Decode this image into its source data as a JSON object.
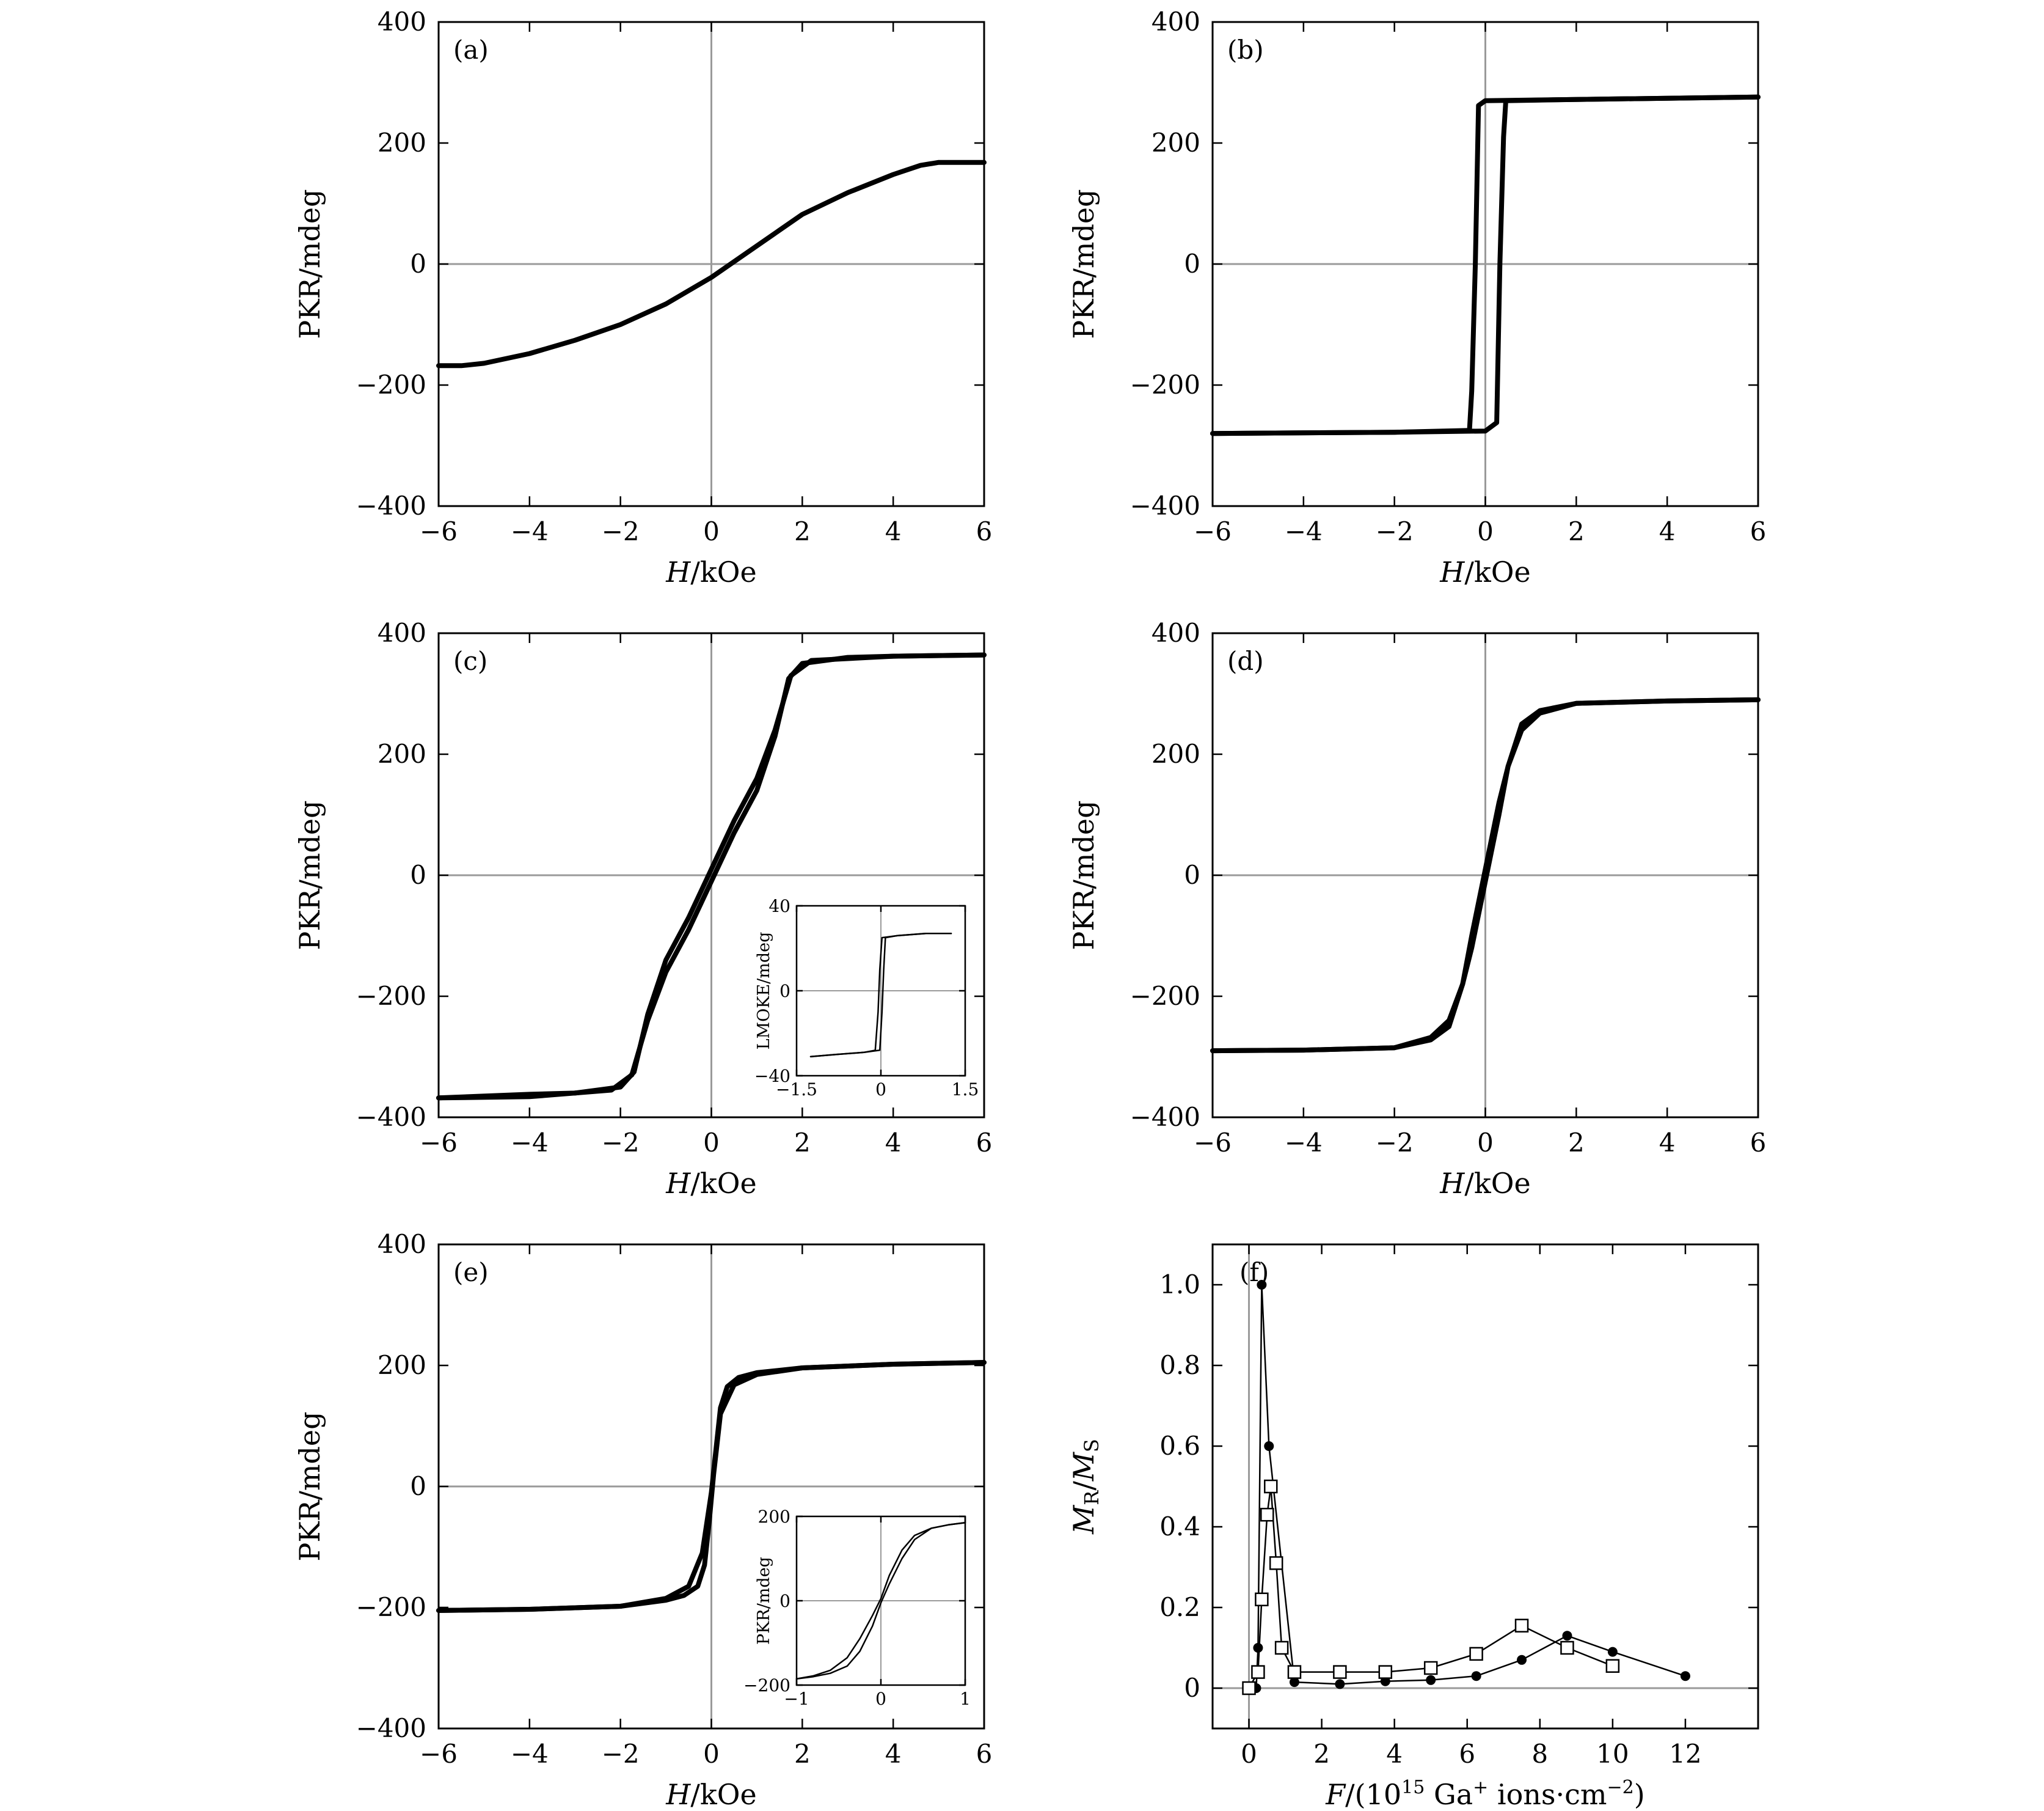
{
  "chart_data": [
    {
      "panel": "a",
      "label": "(a)",
      "type": "line",
      "xlabel_italic": "H",
      "xlabel_rest": "/kOe",
      "ylabel": "PKR/mdeg",
      "xlim": [
        -6,
        6
      ],
      "ylim": [
        -400,
        400
      ],
      "xticks": [
        "−6",
        "−4",
        "−2",
        "0",
        "2",
        "4",
        "6"
      ],
      "yticks": [
        "−400",
        "−200",
        "0",
        "200",
        "400"
      ],
      "series": [
        {
          "x": [
            -6,
            -5.5,
            -5,
            -4,
            -3,
            -2,
            -1,
            0,
            1,
            2,
            3,
            4,
            4.6,
            5,
            5.5,
            6
          ],
          "y": [
            -168,
            -168,
            -164,
            -148,
            -126,
            -100,
            -66,
            -22,
            30,
            82,
            118,
            148,
            163,
            168,
            168,
            168
          ]
        }
      ]
    },
    {
      "panel": "b",
      "label": "(b)",
      "type": "line",
      "xlabel_italic": "H",
      "xlabel_rest": "/kOe",
      "ylabel": "PKR/mdeg",
      "xlim": [
        -6,
        6
      ],
      "ylim": [
        -400,
        400
      ],
      "xticks": [
        "−6",
        "−4",
        "−2",
        "0",
        "2",
        "4",
        "6"
      ],
      "yticks": [
        "−400",
        "−200",
        "0",
        "200",
        "400"
      ],
      "series": [
        {
          "x": [
            -6,
            -2,
            -0.35,
            -0.3,
            -0.22,
            -0.15,
            0,
            2,
            6
          ],
          "y": [
            -280,
            -278,
            -275,
            -210,
            0,
            262,
            270,
            272,
            276
          ]
        },
        {
          "x": [
            6,
            2,
            0.45,
            0.4,
            0.32,
            0.25,
            0,
            -2,
            -6
          ],
          "y": [
            276,
            272,
            270,
            210,
            0,
            -262,
            -276,
            -278,
            -280
          ]
        }
      ]
    },
    {
      "panel": "c",
      "label": "(c)",
      "type": "line",
      "xlabel_italic": "H",
      "xlabel_rest": "/kOe",
      "ylabel": "PKR/mdeg",
      "xlim": [
        -6,
        6
      ],
      "ylim": [
        -400,
        400
      ],
      "xticks": [
        "−6",
        "−4",
        "−2",
        "0",
        "2",
        "4",
        "6"
      ],
      "yticks": [
        "−400",
        "−200",
        "0",
        "200",
        "400"
      ],
      "series": [
        {
          "x": [
            -6,
            -4,
            -2.2,
            -1.75,
            -1.4,
            -1,
            -0.5,
            0,
            0.5,
            1,
            1.4,
            1.7,
            2,
            3,
            4,
            6
          ],
          "y": [
            -368,
            -366,
            -355,
            -330,
            -240,
            -160,
            -90,
            -10,
            70,
            140,
            230,
            325,
            350,
            360,
            362,
            364
          ]
        },
        {
          "x": [
            6,
            4,
            2.2,
            1.75,
            1.4,
            1,
            0.5,
            0,
            -0.5,
            -1,
            -1.4,
            -1.7,
            -2,
            -3,
            -4,
            -6
          ],
          "y": [
            364,
            362,
            355,
            330,
            240,
            160,
            90,
            10,
            -70,
            -140,
            -230,
            -325,
            -350,
            -360,
            -362,
            -368
          ]
        }
      ]
    },
    {
      "panel": "c_inset",
      "type": "line",
      "ylabel": "LMOKE/mdeg",
      "xlim": [
        -1.5,
        1.5
      ],
      "ylim": [
        -40,
        40
      ],
      "xticks": [
        "−1.5",
        "0",
        "1.5"
      ],
      "yticks": [
        "−40",
        "0",
        "40"
      ],
      "series": [
        {
          "x": [
            -1.25,
            -0.8,
            -0.3,
            -0.1,
            -0.05,
            -0.02,
            0.02,
            0.3,
            0.8,
            1.25
          ],
          "y": [
            -31,
            -30,
            -29,
            -28,
            -10,
            10,
            25,
            26,
            27,
            27
          ]
        },
        {
          "x": [
            1.25,
            0.8,
            0.3,
            0.08,
            0.05,
            0.02,
            -0.02,
            -0.3,
            -0.8,
            -1.25
          ],
          "y": [
            27,
            27,
            26,
            25,
            10,
            -10,
            -28,
            -29,
            -30,
            -31
          ]
        }
      ]
    },
    {
      "panel": "d",
      "label": "(d)",
      "type": "line",
      "xlabel_italic": "H",
      "xlabel_rest": "/kOe",
      "ylabel": "PKR/mdeg",
      "xlim": [
        -6,
        6
      ],
      "ylim": [
        -400,
        400
      ],
      "xticks": [
        "−6",
        "−4",
        "−2",
        "0",
        "2",
        "4",
        "6"
      ],
      "yticks": [
        "−400",
        "−200",
        "0",
        "200",
        "400"
      ],
      "series": [
        {
          "x": [
            -6,
            -4,
            -2,
            -1.2,
            -0.8,
            -0.5,
            -0.3,
            0,
            0.3,
            0.5,
            0.8,
            1.2,
            2,
            4,
            6
          ],
          "y": [
            -290,
            -289,
            -285,
            -268,
            -240,
            -180,
            -120,
            -10,
            100,
            180,
            250,
            272,
            284,
            288,
            290
          ]
        },
        {
          "x": [
            6,
            4,
            2,
            1.2,
            0.8,
            0.5,
            0.3,
            0,
            -0.3,
            -0.5,
            -0.8,
            -1.2,
            -2,
            -4,
            -6
          ],
          "y": [
            290,
            288,
            284,
            268,
            240,
            180,
            120,
            10,
            -100,
            -180,
            -250,
            -272,
            -285,
            -289,
            -290
          ]
        }
      ]
    },
    {
      "panel": "e",
      "label": "(e)",
      "type": "line",
      "xlabel_italic": "H",
      "xlabel_rest": "/kOe",
      "ylabel": "PKR/mdeg",
      "xlim": [
        -6,
        6
      ],
      "ylim": [
        -400,
        400
      ],
      "xticks": [
        "−6",
        "−4",
        "−2",
        "0",
        "2",
        "4",
        "6"
      ],
      "yticks": [
        "−400",
        "−200",
        "0",
        "200",
        "400"
      ],
      "series": [
        {
          "x": [
            -6,
            -4,
            -2,
            -1,
            -0.5,
            -0.2,
            0,
            0.1,
            0.2,
            0.35,
            0.6,
            1,
            2,
            4,
            6
          ],
          "y": [
            -205,
            -203,
            -198,
            -185,
            -165,
            -110,
            -10,
            60,
            130,
            165,
            180,
            188,
            196,
            202,
            205
          ]
        },
        {
          "x": [
            6,
            4,
            2,
            1,
            0.5,
            0.2,
            0.05,
            -0.05,
            -0.15,
            -0.3,
            -0.6,
            -1,
            -2,
            -4,
            -6
          ],
          "y": [
            205,
            202,
            196,
            185,
            168,
            120,
            20,
            -60,
            -130,
            -165,
            -180,
            -188,
            -198,
            -203,
            -205
          ]
        }
      ]
    },
    {
      "panel": "e_inset",
      "type": "line",
      "ylabel": "PKR/mdeg",
      "xlim": [
        -1,
        1
      ],
      "ylim": [
        -200,
        200
      ],
      "xticks": [
        "−1",
        "0",
        "1"
      ],
      "yticks": [
        "−200",
        "0",
        "200"
      ],
      "series": [
        {
          "x": [
            -1,
            -0.8,
            -0.6,
            -0.4,
            -0.25,
            -0.1,
            0,
            0.1,
            0.25,
            0.4,
            0.6,
            0.8,
            1
          ],
          "y": [
            -185,
            -178,
            -165,
            -135,
            -90,
            -35,
            5,
            60,
            120,
            155,
            172,
            180,
            185
          ]
        },
        {
          "x": [
            1,
            0.8,
            0.6,
            0.4,
            0.25,
            0.1,
            0,
            -0.1,
            -0.25,
            -0.4,
            -0.6,
            -0.8,
            -1
          ],
          "y": [
            185,
            180,
            172,
            145,
            100,
            40,
            -5,
            -60,
            -120,
            -155,
            -172,
            -180,
            -185
          ]
        }
      ]
    },
    {
      "panel": "f",
      "label": "(f)",
      "type": "line",
      "xlabel_prefix_italic": "F",
      "xlabel_text": "/(10",
      "xlabel_sup1": "15",
      "xlabel_mid": " Ga",
      "xlabel_sup2": "+",
      "xlabel_mid2": " ions·cm",
      "xlabel_sup3": "−2",
      "xlabel_end": ")",
      "ylabel_m1": "M",
      "ylabel_s1": "R",
      "ylabel_slash": "/",
      "ylabel_m2": "M",
      "ylabel_s2": "S",
      "xlim": [
        -1,
        14
      ],
      "ylim": [
        -0.1,
        1.1
      ],
      "xticks": [
        "0",
        "2",
        "4",
        "6",
        "8",
        "10",
        "12"
      ],
      "yticks": [
        "0",
        "0.2",
        "0.4",
        "0.6",
        "0.8",
        "1.0"
      ],
      "series": [
        {
          "marker": "filled-circle",
          "x": [
            0.2,
            0.25,
            0.35,
            0.55,
            1.25,
            2.5,
            3.75,
            5,
            6.25,
            7.5,
            8.75,
            10,
            12
          ],
          "y": [
            0,
            0.1,
            1.0,
            0.6,
            0.015,
            0.01,
            0.017,
            0.02,
            0.03,
            0.07,
            0.13,
            0.09,
            0.03
          ]
        },
        {
          "marker": "open-square",
          "x": [
            0,
            0.25,
            0.35,
            0.5,
            0.6,
            0.75,
            0.9,
            1.25,
            2.5,
            3.75,
            5,
            6.25,
            7.5,
            8.75,
            10
          ],
          "y": [
            0,
            0.04,
            0.22,
            0.43,
            0.5,
            0.31,
            0.1,
            0.04,
            0.04,
            0.04,
            0.05,
            0.085,
            0.155,
            0.1,
            0.055
          ]
        }
      ]
    }
  ]
}
